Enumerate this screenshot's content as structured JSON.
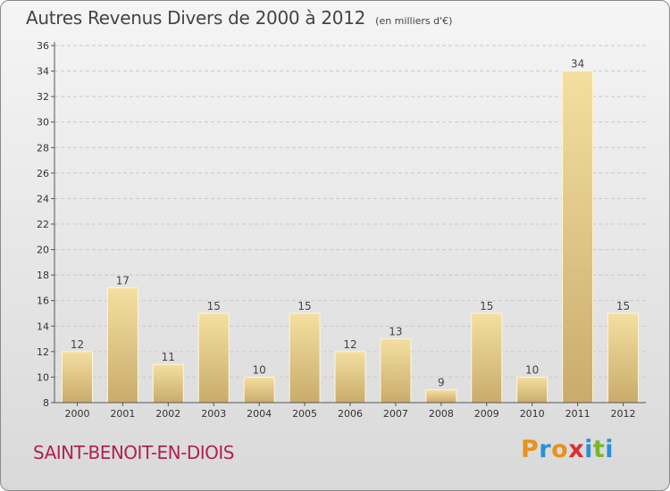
{
  "header": {
    "title": "Autres Revenus Divers de 2000 à 2012",
    "unit": "(en milliers d'€)"
  },
  "footer": {
    "commune": "SAINT-BENOIT-EN-DIOIS",
    "logo_text": "Proxiti",
    "logo_colors": [
      "#e8911c",
      "#2b8fd6",
      "#e8911c",
      "#d8302f",
      "#2b8fd6",
      "#7ab628",
      "#2b8fd6"
    ]
  },
  "colors": {
    "bar_light": "#f4dfa0",
    "bar_dark": "#c9ac6c",
    "axis": "#555555",
    "grid": "#c8c8c8",
    "title": "#444444",
    "commune": "#b0224f"
  },
  "chart_data": {
    "type": "bar",
    "title": "Autres Revenus Divers de 2000 à 2012",
    "xlabel": "",
    "ylabel": "",
    "categories": [
      "2000",
      "2001",
      "2002",
      "2003",
      "2004",
      "2005",
      "2006",
      "2007",
      "2008",
      "2009",
      "2010",
      "2011",
      "2012"
    ],
    "values": [
      12,
      17,
      11,
      15,
      10,
      15,
      12,
      13,
      9,
      15,
      10,
      34,
      15
    ],
    "ylim": [
      8,
      36
    ],
    "yticks": [
      8,
      10,
      12,
      14,
      16,
      18,
      20,
      22,
      24,
      26,
      28,
      30,
      32,
      34,
      36
    ],
    "grid": true,
    "legend": "none",
    "data_labels": true
  }
}
